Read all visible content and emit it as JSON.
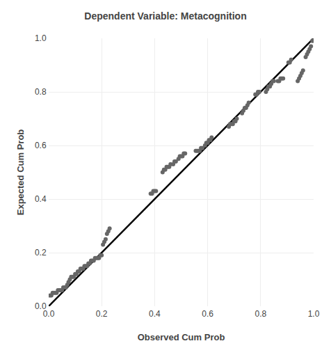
{
  "chart_data": {
    "type": "scatter",
    "title": "Dependent Variable: Metacognition",
    "xlabel": "Observed Cum Prob",
    "ylabel": "Expected Cum Prob",
    "xlim": [
      0.0,
      1.0
    ],
    "ylim": [
      0.0,
      1.0
    ],
    "xticks": [
      {
        "value": 0.0,
        "label": "0.0"
      },
      0.2,
      0.4,
      0.6,
      0.8,
      {
        "value": 1.0,
        "label": "1.0"
      }
    ],
    "yticks": [
      {
        "value": 0.0,
        "label": "0.0"
      },
      0.2,
      0.4,
      0.6,
      0.8,
      {
        "value": 1.0,
        "label": "1.0"
      }
    ],
    "grid": true,
    "series": [
      {
        "type": "scatter",
        "marker": "circle",
        "color": "#666666",
        "x": [
          0.005,
          0.01,
          0.015,
          0.02,
          0.025,
          0.03,
          0.035,
          0.04,
          0.045,
          0.05,
          0.055,
          0.06,
          0.065,
          0.07,
          0.075,
          0.08,
          0.085,
          0.09,
          0.095,
          0.1,
          0.105,
          0.11,
          0.115,
          0.12,
          0.125,
          0.13,
          0.135,
          0.14,
          0.145,
          0.15,
          0.155,
          0.16,
          0.165,
          0.17,
          0.175,
          0.18,
          0.185,
          0.19,
          0.195,
          0.2,
          0.205,
          0.21,
          0.215,
          0.22,
          0.225,
          0.23,
          0.385,
          0.39,
          0.395,
          0.4,
          0.405,
          0.43,
          0.435,
          0.44,
          0.445,
          0.45,
          0.455,
          0.46,
          0.47,
          0.475,
          0.48,
          0.49,
          0.495,
          0.5,
          0.505,
          0.51,
          0.515,
          0.555,
          0.56,
          0.565,
          0.57,
          0.575,
          0.58,
          0.59,
          0.595,
          0.6,
          0.605,
          0.61,
          0.615,
          0.68,
          0.685,
          0.69,
          0.695,
          0.7,
          0.705,
          0.71,
          0.73,
          0.735,
          0.74,
          0.745,
          0.75,
          0.755,
          0.78,
          0.785,
          0.79,
          0.795,
          0.82,
          0.825,
          0.83,
          0.835,
          0.84,
          0.845,
          0.85,
          0.865,
          0.87,
          0.875,
          0.88,
          0.885,
          0.905,
          0.91,
          0.915,
          0.94,
          0.945,
          0.95,
          0.955,
          0.96,
          0.97,
          0.975,
          0.98,
          0.985,
          0.99,
          0.995,
          1.0
        ],
        "values": [
          0.04,
          0.04,
          0.05,
          0.05,
          0.05,
          0.05,
          0.06,
          0.06,
          0.06,
          0.06,
          0.07,
          0.07,
          0.07,
          0.08,
          0.09,
          0.1,
          0.11,
          0.11,
          0.11,
          0.12,
          0.12,
          0.13,
          0.13,
          0.14,
          0.14,
          0.14,
          0.15,
          0.15,
          0.15,
          0.16,
          0.16,
          0.17,
          0.17,
          0.17,
          0.18,
          0.18,
          0.18,
          0.18,
          0.19,
          0.19,
          0.23,
          0.24,
          0.25,
          0.27,
          0.28,
          0.29,
          0.42,
          0.42,
          0.43,
          0.43,
          0.43,
          0.5,
          0.51,
          0.51,
          0.52,
          0.52,
          0.52,
          0.53,
          0.53,
          0.54,
          0.54,
          0.55,
          0.56,
          0.56,
          0.56,
          0.57,
          0.57,
          0.58,
          0.58,
          0.58,
          0.58,
          0.59,
          0.59,
          0.6,
          0.61,
          0.61,
          0.62,
          0.62,
          0.63,
          0.67,
          0.68,
          0.68,
          0.68,
          0.69,
          0.69,
          0.7,
          0.72,
          0.73,
          0.74,
          0.74,
          0.75,
          0.76,
          0.79,
          0.79,
          0.8,
          0.8,
          0.8,
          0.81,
          0.82,
          0.82,
          0.83,
          0.84,
          0.84,
          0.84,
          0.84,
          0.85,
          0.85,
          0.85,
          0.91,
          0.91,
          0.92,
          0.84,
          0.85,
          0.86,
          0.87,
          0.88,
          0.93,
          0.94,
          0.95,
          0.96,
          0.97,
          0.99,
          1.0
        ]
      },
      {
        "type": "line",
        "line_style": "solid",
        "color": "#000000",
        "x": [
          0.0,
          1.0
        ],
        "values": [
          0.0,
          1.0
        ]
      }
    ]
  }
}
